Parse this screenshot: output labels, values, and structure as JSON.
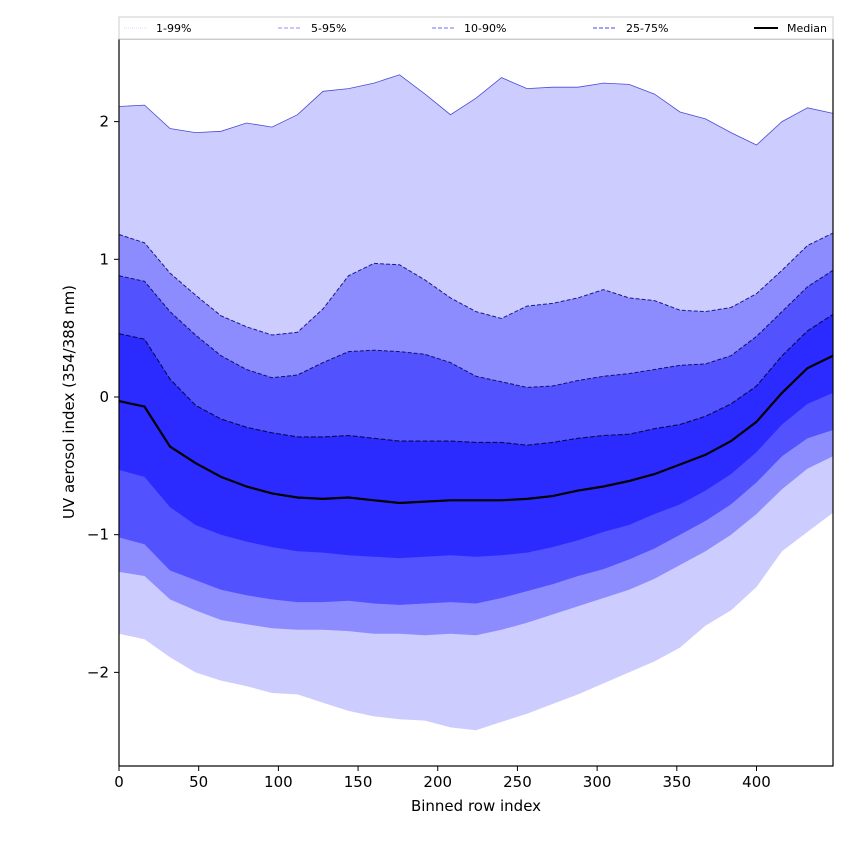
{
  "chart_data": {
    "type": "area",
    "title": "",
    "xlabel": "Binned row index",
    "ylabel": "UV aerosol index (354/388 nm)",
    "xlim": [
      0,
      448
    ],
    "ylim": [
      -2.68,
      2.6
    ],
    "grid": false,
    "legend_placement": "top (above plot, single row)",
    "xticks": [
      0,
      50,
      100,
      150,
      200,
      250,
      300,
      350,
      400
    ],
    "yticks": [
      -2,
      -1,
      0,
      1,
      2
    ],
    "ytick_labels": [
      "−2",
      "−1",
      "0",
      "1",
      "2"
    ],
    "x": [
      0,
      16,
      32,
      48,
      64,
      80,
      96,
      112,
      128,
      144,
      160,
      176,
      192,
      208,
      224,
      240,
      256,
      272,
      288,
      304,
      320,
      336,
      352,
      368,
      384,
      400,
      416,
      432,
      448
    ],
    "series": [
      {
        "name": "p99",
        "values": [
          2.11,
          2.12,
          1.95,
          1.92,
          1.93,
          1.99,
          1.96,
          2.05,
          2.22,
          2.24,
          2.28,
          2.34,
          2.2,
          2.05,
          2.17,
          2.32,
          2.24,
          2.25,
          2.25,
          2.28,
          2.27,
          2.2,
          2.07,
          2.02,
          1.92,
          1.83,
          2.0,
          2.1,
          2.06
        ]
      },
      {
        "name": "p95",
        "values": [
          1.18,
          1.12,
          0.9,
          0.74,
          0.59,
          0.51,
          0.45,
          0.47,
          0.64,
          0.88,
          0.97,
          0.96,
          0.85,
          0.72,
          0.62,
          0.57,
          0.66,
          0.68,
          0.72,
          0.78,
          0.72,
          0.7,
          0.63,
          0.62,
          0.65,
          0.75,
          0.92,
          1.1,
          1.19
        ]
      },
      {
        "name": "p90",
        "values": [
          0.88,
          0.84,
          0.62,
          0.45,
          0.3,
          0.2,
          0.14,
          0.16,
          0.25,
          0.33,
          0.34,
          0.33,
          0.31,
          0.25,
          0.15,
          0.11,
          0.07,
          0.08,
          0.12,
          0.15,
          0.17,
          0.2,
          0.23,
          0.24,
          0.3,
          0.44,
          0.62,
          0.8,
          0.92
        ]
      },
      {
        "name": "p75",
        "values": [
          0.46,
          0.42,
          0.13,
          -0.06,
          -0.16,
          -0.22,
          -0.26,
          -0.29,
          -0.29,
          -0.28,
          -0.3,
          -0.32,
          -0.32,
          -0.32,
          -0.33,
          -0.33,
          -0.35,
          -0.33,
          -0.3,
          -0.28,
          -0.27,
          -0.23,
          -0.2,
          -0.14,
          -0.05,
          0.08,
          0.3,
          0.48,
          0.6
        ]
      },
      {
        "name": "Median",
        "values": [
          -0.03,
          -0.07,
          -0.36,
          -0.48,
          -0.58,
          -0.65,
          -0.7,
          -0.73,
          -0.74,
          -0.73,
          -0.75,
          -0.77,
          -0.76,
          -0.75,
          -0.75,
          -0.75,
          -0.74,
          -0.72,
          -0.68,
          -0.65,
          -0.61,
          -0.56,
          -0.49,
          -0.42,
          -0.32,
          -0.18,
          0.03,
          0.21,
          0.3
        ]
      },
      {
        "name": "p25",
        "values": [
          -0.53,
          -0.58,
          -0.8,
          -0.93,
          -1.0,
          -1.05,
          -1.09,
          -1.12,
          -1.13,
          -1.15,
          -1.16,
          -1.17,
          -1.16,
          -1.15,
          -1.16,
          -1.15,
          -1.13,
          -1.09,
          -1.04,
          -0.98,
          -0.93,
          -0.85,
          -0.78,
          -0.68,
          -0.56,
          -0.4,
          -0.2,
          -0.05,
          0.03
        ]
      },
      {
        "name": "p10",
        "values": [
          -1.02,
          -1.07,
          -1.26,
          -1.33,
          -1.4,
          -1.44,
          -1.47,
          -1.49,
          -1.49,
          -1.48,
          -1.5,
          -1.51,
          -1.5,
          -1.49,
          -1.5,
          -1.46,
          -1.41,
          -1.36,
          -1.3,
          -1.25,
          -1.18,
          -1.1,
          -1.0,
          -0.9,
          -0.78,
          -0.62,
          -0.43,
          -0.3,
          -0.24
        ]
      },
      {
        "name": "p5",
        "values": [
          -1.27,
          -1.3,
          -1.47,
          -1.55,
          -1.62,
          -1.65,
          -1.68,
          -1.69,
          -1.69,
          -1.7,
          -1.72,
          -1.72,
          -1.73,
          -1.72,
          -1.73,
          -1.69,
          -1.64,
          -1.58,
          -1.52,
          -1.46,
          -1.4,
          -1.32,
          -1.22,
          -1.12,
          -1.0,
          -0.85,
          -0.67,
          -0.52,
          -0.43
        ]
      },
      {
        "name": "p1",
        "values": [
          -1.72,
          -1.76,
          -1.89,
          -2.0,
          -2.06,
          -2.1,
          -2.15,
          -2.16,
          -2.22,
          -2.28,
          -2.32,
          -2.34,
          -2.35,
          -2.4,
          -2.42,
          -2.36,
          -2.3,
          -2.23,
          -2.16,
          -2.08,
          -2.0,
          -1.92,
          -1.82,
          -1.66,
          -1.55,
          -1.38,
          -1.12,
          -0.98,
          -0.84
        ]
      }
    ],
    "bands": [
      {
        "label": "1-99%",
        "lower": "p1",
        "upper": "p99",
        "color": "#ccccff"
      },
      {
        "label": "5-95%",
        "lower": "p5",
        "upper": "p95",
        "color": "#8c8cff"
      },
      {
        "label": "10-90%",
        "lower": "p10",
        "upper": "p90",
        "color": "#5252ff"
      },
      {
        "label": "25-75%",
        "lower": "p25",
        "upper": "p75",
        "color": "#2b2bff"
      }
    ],
    "legend": [
      {
        "label": "1-99%",
        "style": "dotted",
        "color": "#ccccff"
      },
      {
        "label": "5-95%",
        "style": "dashed",
        "color": "#a8a8ff"
      },
      {
        "label": "10-90%",
        "style": "dashed",
        "color": "#8c8cff"
      },
      {
        "label": "25-75%",
        "style": "dashed",
        "color": "#6a6aff"
      },
      {
        "label": "Median",
        "style": "solid",
        "color": "#000000"
      }
    ]
  }
}
